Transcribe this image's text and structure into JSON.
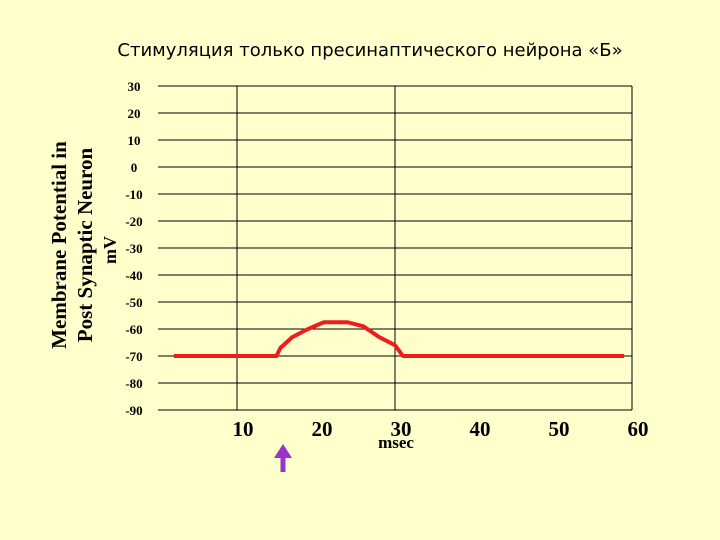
{
  "chart_data": {
    "type": "line",
    "title": "Стимуляция только пресинаптического нейрона «Б»",
    "ylabel": [
      "Membrane Potential in",
      "Post Synaptic Neuron"
    ],
    "ylabel_unit": "mV",
    "xlabel": "msec",
    "x": [
      2,
      15,
      15.5,
      17,
      19,
      21,
      24,
      26,
      28,
      30,
      31,
      59
    ],
    "values": [
      -70,
      -70,
      -67,
      -63,
      -60,
      -57.5,
      -57.5,
      -59,
      -63,
      -66,
      -70,
      -70
    ],
    "color": "#ee1c1c",
    "xlim": [
      0,
      60
    ],
    "xticks": [
      10,
      20,
      30,
      40,
      50,
      60
    ],
    "x_gridlines": [
      10,
      30,
      60
    ],
    "ylim": [
      -90,
      30
    ],
    "yticks": [
      30,
      20,
      10,
      0,
      -10,
      -20,
      -30,
      -40,
      -50,
      -60,
      -70,
      -80,
      -90
    ],
    "grid": true
  }
}
